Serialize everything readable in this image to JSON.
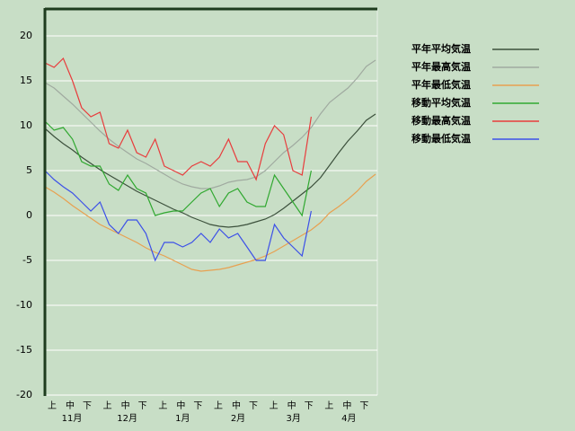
{
  "chart_data": {
    "type": "line",
    "x": [
      0,
      5,
      10,
      15,
      20,
      25,
      30,
      35,
      40,
      45,
      50,
      55,
      60,
      65,
      70,
      75,
      80,
      85,
      90,
      95,
      100,
      105,
      110,
      115,
      120,
      125,
      130,
      135,
      140,
      145,
      150,
      155,
      160,
      165,
      170,
      175,
      180
    ],
    "xlim": [
      0,
      181
    ],
    "dekad_labels": [
      "上",
      "中",
      "下",
      "上",
      "中",
      "下",
      "上",
      "中",
      "下",
      "上",
      "中",
      "下",
      "上",
      "中",
      "下",
      "上",
      "中",
      "下"
    ],
    "month_labels": [
      "11月",
      "12月",
      "1月",
      "2月",
      "3月",
      "4月"
    ],
    "ylim": [
      -20,
      23
    ],
    "yticks": [
      20,
      15,
      10,
      5,
      0,
      -5,
      -10,
      -15,
      -20
    ],
    "grid": true,
    "legend": "right",
    "series": [
      {
        "name": "平年平均気温",
        "color": "#3c503c",
        "values": [
          9.7,
          8.8,
          8.0,
          7.3,
          6.5,
          5.8,
          5.1,
          4.5,
          3.9,
          3.3,
          2.7,
          2.2,
          1.7,
          1.2,
          0.7,
          0.3,
          -0.2,
          -0.6,
          -1.0,
          -1.2,
          -1.3,
          -1.2,
          -1.0,
          -0.7,
          -0.4,
          0.1,
          0.8,
          1.6,
          2.4,
          3.2,
          4.2,
          5.6,
          7.0,
          8.3,
          9.4,
          10.6,
          11.3
        ]
      },
      {
        "name": "平年最高気温",
        "color": "#a0aaa0",
        "values": [
          14.8,
          14.2,
          13.3,
          12.4,
          11.4,
          10.4,
          9.4,
          8.5,
          7.7,
          7.0,
          6.3,
          5.8,
          5.2,
          4.6,
          4.0,
          3.5,
          3.2,
          3.0,
          3.0,
          3.3,
          3.7,
          3.9,
          4.0,
          4.3,
          5.0,
          6.0,
          7.0,
          7.8,
          8.7,
          9.8,
          11.3,
          12.6,
          13.4,
          14.2,
          15.3,
          16.6,
          17.3
        ]
      },
      {
        "name": "平年最低気温",
        "color": "#e8a050",
        "values": [
          3.2,
          2.6,
          1.9,
          1.1,
          0.4,
          -0.3,
          -1.0,
          -1.5,
          -2.0,
          -2.5,
          -3.0,
          -3.6,
          -4.1,
          -4.5,
          -5.0,
          -5.5,
          -6.0,
          -6.2,
          -6.1,
          -6.0,
          -5.8,
          -5.5,
          -5.2,
          -4.9,
          -4.5,
          -4.0,
          -3.4,
          -2.8,
          -2.2,
          -1.6,
          -0.8,
          0.3,
          1.0,
          1.8,
          2.7,
          3.8,
          4.6
        ]
      },
      {
        "name": "移動平均気温",
        "color": "#30a830",
        "values": [
          10.5,
          9.5,
          9.8,
          8.5,
          6.0,
          5.5,
          5.5,
          3.5,
          2.8,
          4.5,
          3.0,
          2.5,
          0.0,
          0.3,
          0.5,
          0.5,
          1.5,
          2.5,
          3.0,
          1.0,
          2.5,
          3.0,
          1.5,
          1.0,
          1.0,
          4.5,
          3.0,
          1.5,
          0.0,
          5.0,
          null,
          null,
          null,
          null,
          null,
          null,
          null
        ]
      },
      {
        "name": "移動最高気温",
        "color": "#e83c3c",
        "values": [
          17.0,
          16.5,
          17.5,
          15.0,
          12.0,
          11.0,
          11.5,
          8.0,
          7.5,
          9.5,
          7.0,
          6.5,
          8.5,
          5.5,
          5.0,
          4.5,
          5.5,
          6.0,
          5.5,
          6.5,
          8.5,
          6.0,
          6.0,
          4.0,
          8.0,
          10.0,
          9.0,
          5.0,
          4.5,
          11.0,
          null,
          null,
          null,
          null,
          null,
          null,
          null
        ]
      },
      {
        "name": "移動最低気温",
        "color": "#3c50e8",
        "values": [
          5.0,
          4.0,
          3.2,
          2.5,
          1.5,
          0.5,
          1.5,
          -1.0,
          -2.0,
          -0.5,
          -0.5,
          -2.0,
          -5.0,
          -3.0,
          -3.0,
          -3.5,
          -3.0,
          -2.0,
          -3.0,
          -1.5,
          -2.5,
          -2.0,
          -3.5,
          -5.0,
          -5.0,
          -1.0,
          -2.5,
          -3.5,
          -4.5,
          0.5,
          null,
          null,
          null,
          null,
          null,
          null,
          null
        ]
      }
    ]
  }
}
